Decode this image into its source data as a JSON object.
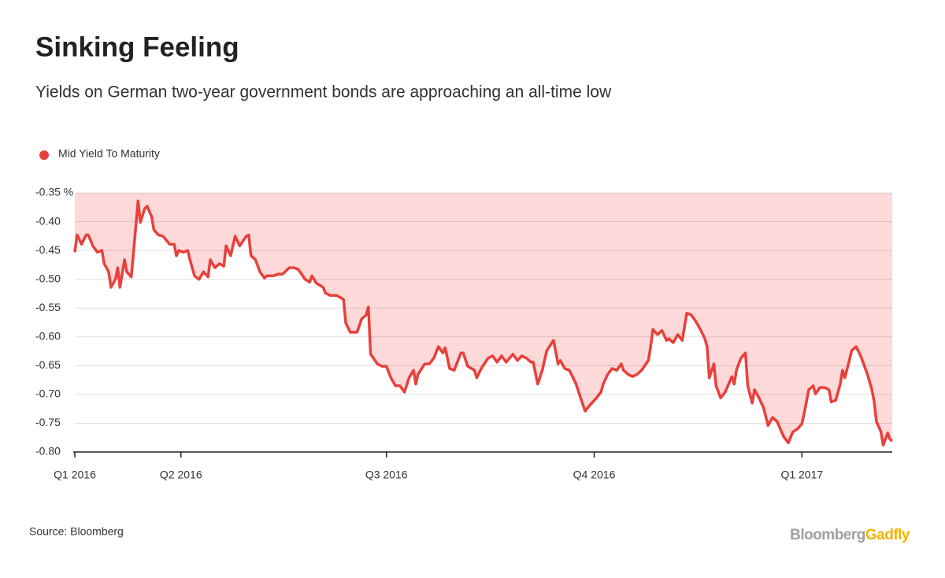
{
  "chart_data": {
    "type": "line",
    "title": "Sinking Feeling",
    "subtitle": "Yields on German two-year government bonds are approaching an all-time low",
    "source": "Source: Bloomberg",
    "brand": [
      "Bloomberg",
      "Gadfly"
    ],
    "brand_colors": [
      "#a0a0a0",
      "#f0b400"
    ],
    "area_color": "#fdd9d9",
    "grid": true,
    "ylim": [
      -0.8,
      -0.35
    ],
    "yticks": [
      {
        "value": -0.35,
        "label": "-0.35 %"
      },
      {
        "value": -0.4,
        "label": "-0.40"
      },
      -0.45,
      {
        "value": -0.5,
        "label": "-0.50"
      },
      -0.55,
      {
        "value": -0.6,
        "label": "-0.60"
      },
      -0.65,
      {
        "value": -0.7,
        "label": "-0.70"
      },
      -0.75,
      {
        "value": -0.8,
        "label": "-0.80"
      }
    ],
    "xlim": [
      0,
      362
    ],
    "xticks": [
      {
        "value": 0,
        "label": "Q1 2016"
      },
      {
        "value": 47,
        "label": "Q2 2016"
      },
      {
        "value": 138,
        "label": "Q3 2016"
      },
      {
        "value": 230,
        "label": "Q4 2016"
      },
      {
        "value": 322,
        "label": "Q1 2017"
      }
    ],
    "x": [
      0,
      1,
      3,
      5,
      6,
      8,
      10,
      12,
      13,
      15,
      16,
      18,
      19,
      20,
      22,
      23,
      25,
      26,
      28,
      29,
      31,
      32,
      34,
      35,
      37,
      39,
      42,
      44,
      45,
      46,
      48,
      50,
      51,
      53,
      55,
      57,
      59,
      60,
      62,
      64,
      66,
      67,
      69,
      71,
      73,
      74,
      76,
      77,
      78,
      80,
      82,
      84,
      85,
      88,
      90,
      92,
      95,
      97,
      99,
      102,
      104,
      105,
      107,
      110,
      111,
      113,
      116,
      119,
      120,
      122,
      125,
      127,
      129,
      130,
      131,
      134,
      136,
      138,
      140,
      142,
      144,
      146,
      148,
      150,
      151,
      152,
      155,
      157,
      159,
      161,
      163,
      164,
      166,
      168,
      171,
      172,
      174,
      177,
      178,
      180,
      183,
      185,
      187,
      189,
      191,
      194,
      196,
      198,
      200,
      202,
      203,
      205,
      207,
      209,
      212,
      214,
      215,
      217,
      219,
      222,
      224,
      226,
      228,
      231,
      233,
      234,
      236,
      238,
      240,
      242,
      243,
      245,
      247,
      249,
      251,
      254,
      255,
      256,
      258,
      260,
      262,
      263,
      265,
      267,
      269,
      271,
      273,
      275,
      277,
      279,
      280,
      281,
      283,
      284,
      286,
      288,
      291,
      292,
      293,
      295,
      297,
      298,
      300,
      301,
      303,
      305,
      307,
      309,
      311,
      314,
      316,
      318,
      320,
      322,
      323,
      325,
      327,
      328,
      330,
      332,
      334,
      335,
      337,
      339,
      340,
      341,
      343,
      344,
      346,
      348,
      351,
      353,
      354,
      355,
      357,
      358,
      360,
      361,
      362
    ],
    "series": [
      {
        "name": "Mid Yield To Maturity",
        "color": "#e8403c",
        "values": [
          -0.453,
          -0.423,
          -0.439,
          -0.423,
          -0.423,
          -0.442,
          -0.453,
          -0.45,
          -0.473,
          -0.487,
          -0.514,
          -0.5,
          -0.48,
          -0.514,
          -0.466,
          -0.487,
          -0.496,
          -0.453,
          -0.364,
          -0.401,
          -0.377,
          -0.373,
          -0.391,
          -0.414,
          -0.423,
          -0.425,
          -0.439,
          -0.439,
          -0.459,
          -0.45,
          -0.453,
          -0.45,
          -0.466,
          -0.494,
          -0.5,
          -0.487,
          -0.496,
          -0.466,
          -0.48,
          -0.473,
          -0.477,
          -0.442,
          -0.459,
          -0.425,
          -0.442,
          -0.436,
          -0.425,
          -0.423,
          -0.459,
          -0.466,
          -0.487,
          -0.498,
          -0.494,
          -0.494,
          -0.491,
          -0.491,
          -0.48,
          -0.48,
          -0.483,
          -0.5,
          -0.505,
          -0.494,
          -0.507,
          -0.514,
          -0.524,
          -0.528,
          -0.528,
          -0.535,
          -0.576,
          -0.592,
          -0.592,
          -0.569,
          -0.562,
          -0.548,
          -0.63,
          -0.647,
          -0.651,
          -0.651,
          -0.671,
          -0.685,
          -0.685,
          -0.696,
          -0.671,
          -0.658,
          -0.682,
          -0.665,
          -0.647,
          -0.647,
          -0.637,
          -0.617,
          -0.628,
          -0.619,
          -0.655,
          -0.658,
          -0.628,
          -0.628,
          -0.651,
          -0.658,
          -0.671,
          -0.655,
          -0.637,
          -0.633,
          -0.644,
          -0.633,
          -0.644,
          -0.63,
          -0.641,
          -0.633,
          -0.637,
          -0.644,
          -0.644,
          -0.682,
          -0.658,
          -0.624,
          -0.606,
          -0.647,
          -0.641,
          -0.655,
          -0.658,
          -0.682,
          -0.706,
          -0.729,
          -0.719,
          -0.706,
          -0.696,
          -0.682,
          -0.665,
          -0.655,
          -0.658,
          -0.647,
          -0.658,
          -0.665,
          -0.669,
          -0.665,
          -0.658,
          -0.641,
          -0.617,
          -0.587,
          -0.596,
          -0.589,
          -0.606,
          -0.603,
          -0.61,
          -0.596,
          -0.606,
          -0.559,
          -0.562,
          -0.573,
          -0.587,
          -0.603,
          -0.617,
          -0.671,
          -0.647,
          -0.685,
          -0.706,
          -0.696,
          -0.669,
          -0.682,
          -0.658,
          -0.637,
          -0.628,
          -0.685,
          -0.715,
          -0.692,
          -0.706,
          -0.723,
          -0.754,
          -0.74,
          -0.747,
          -0.774,
          -0.784,
          -0.765,
          -0.76,
          -0.751,
          -0.733,
          -0.692,
          -0.685,
          -0.699,
          -0.688,
          -0.688,
          -0.692,
          -0.713,
          -0.71,
          -0.682,
          -0.658,
          -0.671,
          -0.641,
          -0.624,
          -0.617,
          -0.633,
          -0.665,
          -0.692,
          -0.713,
          -0.747,
          -0.765,
          -0.788,
          -0.767,
          -0.778,
          -0.781
        ]
      }
    ]
  }
}
